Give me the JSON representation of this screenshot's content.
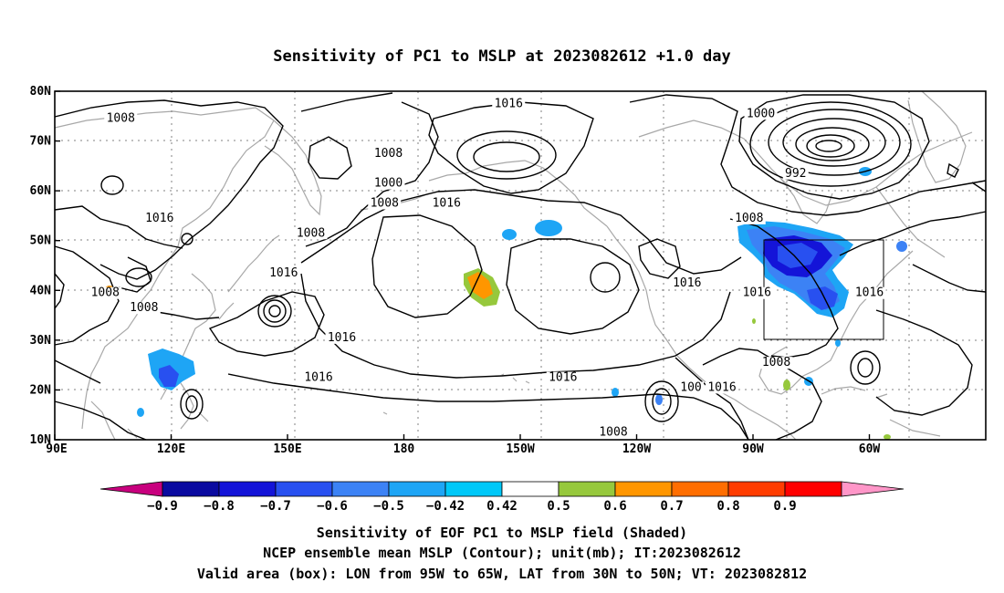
{
  "title": "Sensitivity of PC1 to MSLP at 2023082612 +1.0 day",
  "map": {
    "lon_ticks": [
      "90E",
      "120E",
      "150E",
      "180",
      "150W",
      "120W",
      "90W",
      "60W"
    ],
    "lat_ticks": [
      "80N",
      "70N",
      "60N",
      "50N",
      "40N",
      "30N",
      "20N",
      "10N"
    ],
    "contour_labels": [
      {
        "text": "1008",
        "lon": 107,
        "lat": 74
      },
      {
        "text": "1016",
        "lon": 207,
        "lat": 77
      },
      {
        "text": "1008",
        "lon": 176,
        "lat": 67
      },
      {
        "text": "1000",
        "lon": 272,
        "lat": 75
      },
      {
        "text": "992",
        "lon": 281,
        "lat": 63
      },
      {
        "text": "1000",
        "lon": 176,
        "lat": 61
      },
      {
        "text": "1008",
        "lon": 175,
        "lat": 57
      },
      {
        "text": "1016",
        "lon": 191,
        "lat": 57
      },
      {
        "text": "1016",
        "lon": 117,
        "lat": 54
      },
      {
        "text": "1008",
        "lon": 156,
        "lat": 51
      },
      {
        "text": "1008",
        "lon": 269,
        "lat": 54
      },
      {
        "text": "1016",
        "lon": 149,
        "lat": 43
      },
      {
        "text": "1016",
        "lon": 253,
        "lat": 41
      },
      {
        "text": "1008",
        "lon": 103,
        "lat": 39
      },
      {
        "text": "1016",
        "lon": 271,
        "lat": 39
      },
      {
        "text": "1016",
        "lon": 300,
        "lat": 39
      },
      {
        "text": "1008",
        "lon": 113,
        "lat": 36
      },
      {
        "text": "1016",
        "lon": 164,
        "lat": 30
      },
      {
        "text": "1008",
        "lon": 276,
        "lat": 25
      },
      {
        "text": "1016",
        "lon": 158,
        "lat": 22
      },
      {
        "text": "1016",
        "lon": 221,
        "lat": 22
      },
      {
        "text": "100",
        "lon": 254,
        "lat": 20
      },
      {
        "text": "1016",
        "lon": 262,
        "lat": 20
      },
      {
        "text": "1008",
        "lon": 234,
        "lat": 11
      }
    ],
    "valid_box": {
      "lon_min": -95,
      "lon_max": -65,
      "lat_min": 30,
      "lat_max": 50
    }
  },
  "colorbar": {
    "labels": [
      "-0.9",
      "-0.8",
      "-0.7",
      "-0.6",
      "-0.5",
      "-0.42",
      "0.42",
      "0.5",
      "0.6",
      "0.7",
      "0.8",
      "0.9"
    ],
    "colors": [
      "#c8007e",
      "#0a0aa0",
      "#1414d8",
      "#2850f0",
      "#3c82f5",
      "#1ea5f5",
      "#00c8f8",
      "#ffffff",
      "#96c83c",
      "#ff9600",
      "#ff6e00",
      "#ff3c00",
      "#ff0000",
      "#ff96c8"
    ]
  },
  "captions": [
    "Sensitivity of EOF PC1 to MSLP field (Shaded)",
    "NCEP ensemble mean MSLP (Contour); unit(mb); IT:2023082612",
    "Valid area (box): LON from 95W to 65W, LAT from 30N to 50N; VT: 2023082812"
  ]
}
